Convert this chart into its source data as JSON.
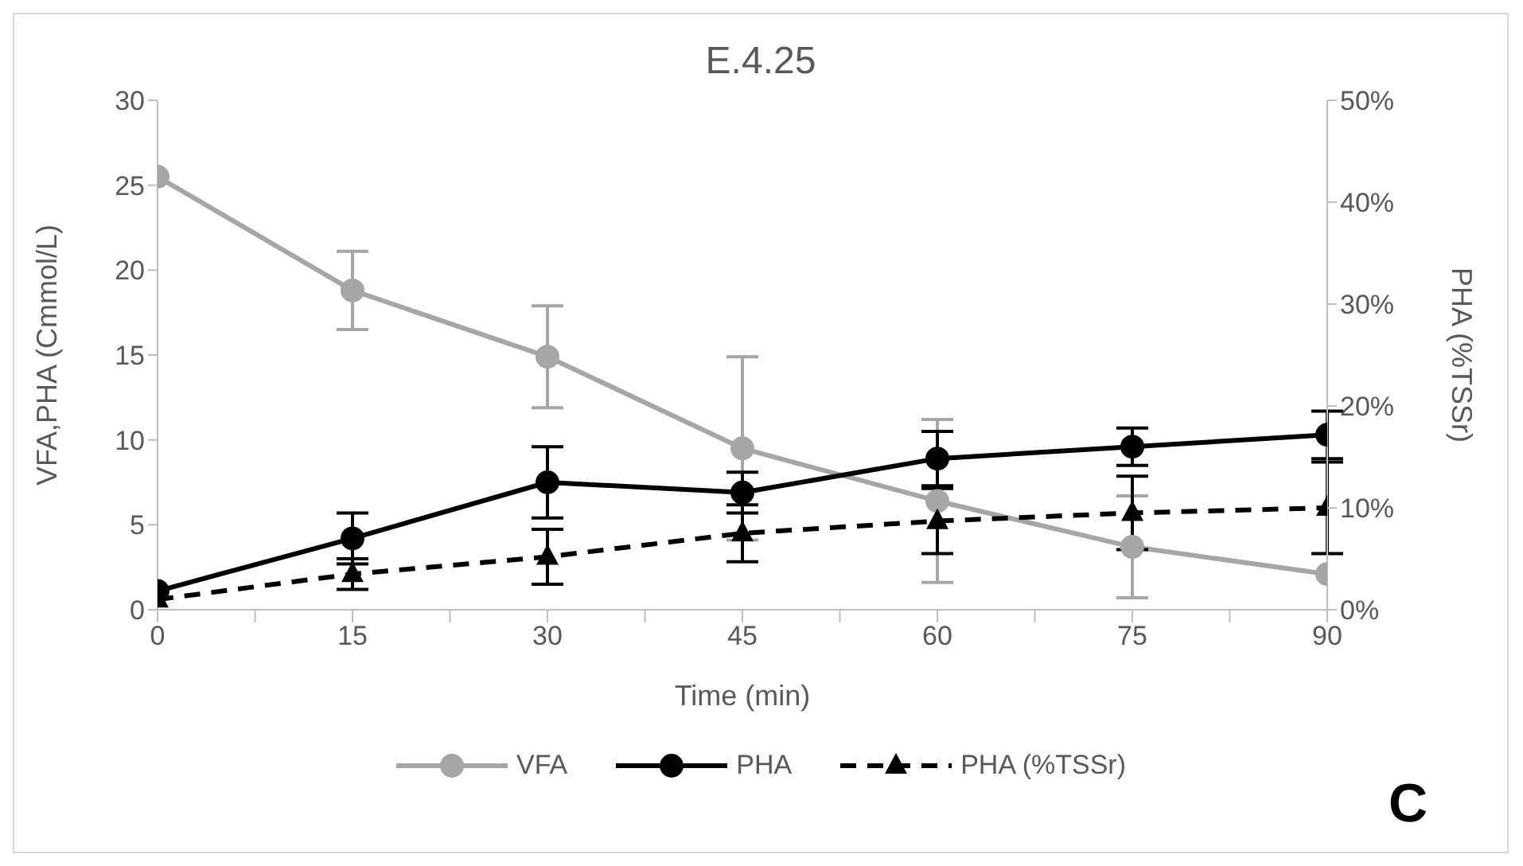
{
  "chart_data": {
    "type": "line",
    "title": "E.4.25",
    "xlabel": "Time (min)",
    "ylabel": "VFA,PHA (Cmmol/L)",
    "y2label": "PHA (%TSSr)",
    "x": [
      0,
      15,
      30,
      45,
      60,
      75,
      90
    ],
    "series": [
      {
        "name": "VFA",
        "color": "#a6a6a6",
        "marker": "circle",
        "line_style": "solid",
        "values": [
          25.5,
          18.8,
          14.9,
          9.5,
          6.4,
          3.7,
          2.1
        ],
        "errors": [
          null,
          2.3,
          3.0,
          5.4,
          4.8,
          3.0,
          null
        ]
      },
      {
        "name": "PHA",
        "color": "#000000",
        "marker": "circle",
        "line_style": "solid",
        "values": [
          1.1,
          4.2,
          7.5,
          6.9,
          8.9,
          9.6,
          10.3
        ],
        "errors": [
          null,
          1.5,
          2.1,
          1.2,
          1.6,
          1.1,
          1.4
        ]
      },
      {
        "name": "PHA (%TSSr)",
        "color": "#000000",
        "marker": "triangle",
        "line_style": "dashed",
        "axis": "y2",
        "values": [
          1,
          3.5,
          5.2,
          7.5,
          8.7,
          9.5,
          10
        ],
        "errors": [
          null,
          1.5,
          2.7,
          2.8,
          3.2,
          3.6,
          4.5
        ]
      }
    ],
    "xlim": [
      0,
      90
    ],
    "xticks": [
      0,
      {
        "value": 7.5,
        "label": null
      },
      15,
      {
        "value": 22.5,
        "label": null
      },
      30,
      {
        "value": 37.5,
        "label": null
      },
      45,
      {
        "value": 52.5,
        "label": null
      },
      60,
      {
        "value": 67.5,
        "label": null
      },
      75,
      {
        "value": 82.5,
        "label": null
      },
      90
    ],
    "ylim": [
      0,
      30
    ],
    "yticks": [
      0,
      5,
      10,
      15,
      20,
      25,
      30
    ],
    "y2lim": [
      0,
      50
    ],
    "y2ticks": [
      {
        "value": 0,
        "label": "0%"
      },
      {
        "value": 10,
        "label": "10%"
      },
      {
        "value": 20,
        "label": "20%"
      },
      {
        "value": 30,
        "label": "30%"
      },
      {
        "value": 40,
        "label": "40%"
      },
      {
        "value": 50,
        "label": "50%"
      }
    ],
    "grid": false,
    "legend": "bottom",
    "annotations": [
      "C"
    ]
  }
}
